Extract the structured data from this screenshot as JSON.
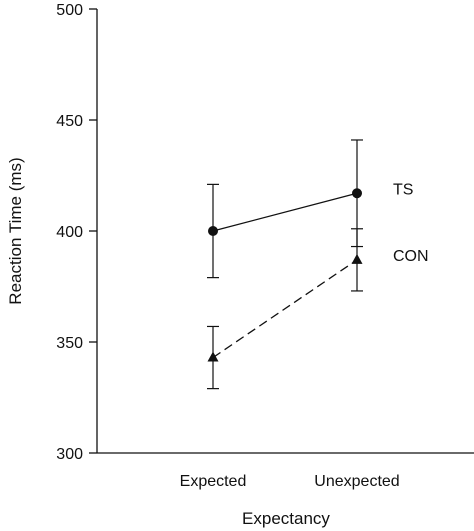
{
  "chart_data": {
    "type": "line",
    "title": "",
    "xlabel": "Expectancy",
    "ylabel": "Reaction Time (ms)",
    "categories": [
      "Expected",
      "Unexpected"
    ],
    "ylim": [
      300,
      500
    ],
    "yticks": [
      300,
      350,
      400,
      450,
      500
    ],
    "grid": false,
    "legend": "none",
    "series": [
      {
        "name": "TS",
        "marker": "circle",
        "line_style": "solid",
        "values": [
          400,
          417
        ],
        "error_low": [
          379,
          393
        ],
        "error_high": [
          421,
          441
        ]
      },
      {
        "name": "CON",
        "marker": "triangle",
        "line_style": "dashed",
        "values": [
          343,
          387
        ],
        "error_low": [
          329,
          373
        ],
        "error_high": [
          357,
          401
        ]
      }
    ]
  },
  "colors": {
    "ink": "#111111",
    "background": "#ffffff"
  }
}
